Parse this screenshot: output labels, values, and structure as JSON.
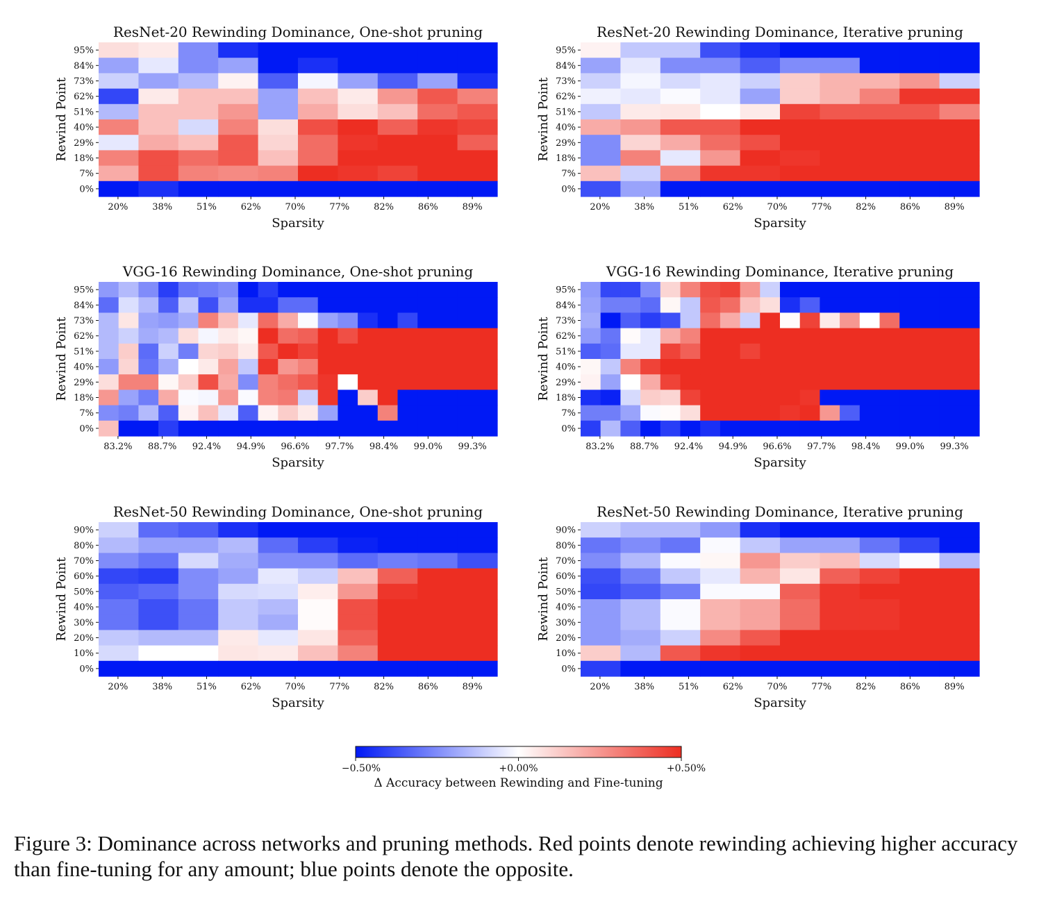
{
  "chart_data": [
    {
      "type": "heatmap",
      "title": "ResNet-20 Rewinding Dominance, One-shot pruning",
      "xlabel": "Sparsity",
      "ylabel": "Rewind Point",
      "x_ticks": [
        "20%",
        "38%",
        "51%",
        "62%",
        "70%",
        "77%",
        "82%",
        "86%",
        "89%"
      ],
      "y_ticks": [
        "95%",
        "84%",
        "73%",
        "62%",
        "51%",
        "40%",
        "29%",
        "18%",
        "7%",
        "0%"
      ],
      "values": [
        [
          0.08,
          0.05,
          -0.25,
          -0.45,
          -0.5,
          -0.5,
          -0.5,
          -0.5,
          -0.5,
          -0.5
        ],
        [
          -0.2,
          -0.05,
          -0.25,
          -0.2,
          -0.5,
          -0.45,
          -0.5,
          -0.5,
          -0.5,
          -0.5
        ],
        [
          -0.1,
          -0.2,
          -0.15,
          0.03,
          -0.35,
          -0.02,
          -0.2,
          -0.35,
          -0.2,
          -0.45
        ],
        [
          -0.4,
          0.05,
          0.15,
          0.15,
          -0.2,
          0.15,
          0.05,
          0.25,
          0.4,
          0.3
        ],
        [
          -0.15,
          0.15,
          0.15,
          0.25,
          -0.2,
          0.2,
          0.08,
          0.15,
          0.35,
          0.4
        ],
        [
          0.3,
          0.15,
          -0.08,
          0.3,
          0.08,
          0.42,
          0.5,
          0.38,
          0.48,
          0.45
        ],
        [
          -0.05,
          0.2,
          0.15,
          0.4,
          0.1,
          0.35,
          0.48,
          0.5,
          0.5,
          0.38
        ],
        [
          0.3,
          0.42,
          0.35,
          0.4,
          0.15,
          0.35,
          0.5,
          0.5,
          0.5,
          0.5
        ],
        [
          0.2,
          0.42,
          0.3,
          0.28,
          0.3,
          0.5,
          0.48,
          0.45,
          0.5,
          0.5
        ],
        [
          -0.5,
          -0.45,
          -0.5,
          -0.5,
          -0.5,
          -0.5,
          -0.5,
          -0.5,
          -0.5,
          -0.5
        ]
      ],
      "colorbar_range": [
        -0.5,
        0.5
      ]
    },
    {
      "type": "heatmap",
      "title": "ResNet-20 Rewinding Dominance, Iterative pruning",
      "xlabel": "Sparsity",
      "ylabel": "Rewind Point",
      "x_ticks": [
        "20%",
        "38%",
        "51%",
        "62%",
        "70%",
        "77%",
        "82%",
        "86%",
        "89%"
      ],
      "y_ticks": [
        "95%",
        "84%",
        "73%",
        "62%",
        "51%",
        "40%",
        "29%",
        "18%",
        "7%",
        "0%"
      ],
      "values": [
        [
          0.03,
          -0.12,
          -0.12,
          -0.38,
          -0.45,
          -0.5,
          -0.5,
          -0.5,
          -0.5,
          -0.5
        ],
        [
          -0.2,
          -0.05,
          -0.25,
          -0.25,
          -0.35,
          -0.25,
          -0.25,
          -0.5,
          -0.5,
          -0.5
        ],
        [
          -0.1,
          -0.02,
          -0.08,
          -0.05,
          -0.1,
          0.12,
          0.18,
          0.18,
          0.25,
          -0.1
        ],
        [
          -0.03,
          -0.05,
          -0.01,
          -0.05,
          -0.2,
          0.12,
          0.18,
          0.3,
          0.48,
          0.48
        ],
        [
          -0.12,
          0.05,
          0.06,
          0.0,
          0.05,
          0.45,
          0.4,
          0.4,
          0.4,
          0.3
        ],
        [
          0.2,
          0.25,
          0.4,
          0.4,
          0.5,
          0.5,
          0.5,
          0.5,
          0.5,
          0.5
        ],
        [
          -0.25,
          0.1,
          0.2,
          0.35,
          0.42,
          0.5,
          0.5,
          0.5,
          0.5,
          0.5
        ],
        [
          -0.25,
          0.3,
          -0.05,
          0.25,
          0.5,
          0.48,
          0.5,
          0.5,
          0.5,
          0.5
        ],
        [
          0.15,
          -0.1,
          0.3,
          0.48,
          0.48,
          0.5,
          0.5,
          0.5,
          0.5,
          0.5
        ],
        [
          -0.38,
          -0.2,
          -0.5,
          -0.5,
          -0.5,
          -0.5,
          -0.5,
          -0.5,
          -0.5,
          -0.5
        ]
      ],
      "colorbar_range": [
        -0.5,
        0.5
      ]
    },
    {
      "type": "heatmap",
      "title": "VGG-16 Rewinding Dominance, One-shot pruning",
      "xlabel": "Sparsity",
      "ylabel": "Rewind Point",
      "x_ticks": [
        "83.2%",
        "88.7%",
        "92.4%",
        "94.9%",
        "96.6%",
        "97.7%",
        "98.4%",
        "99.0%",
        "99.3%"
      ],
      "y_ticks": [
        "95%",
        "84%",
        "73%",
        "62%",
        "51%",
        "40%",
        "29%",
        "18%",
        "7%",
        "0%"
      ],
      "values": [
        [
          -0.22,
          -0.15,
          -0.25,
          -0.42,
          -0.3,
          -0.28,
          -0.25,
          -0.5,
          -0.42,
          -0.5,
          -0.5,
          -0.5,
          -0.5,
          -0.5,
          -0.5,
          -0.5,
          -0.5,
          -0.5,
          -0.5,
          -0.5
        ],
        [
          -0.32,
          -0.07,
          -0.15,
          -0.35,
          -0.12,
          -0.38,
          -0.2,
          -0.45,
          -0.45,
          -0.32,
          -0.32,
          -0.5,
          -0.5,
          -0.5,
          -0.5,
          -0.5,
          -0.5,
          -0.5,
          -0.5,
          -0.5
        ],
        [
          -0.15,
          0.06,
          -0.2,
          -0.22,
          -0.18,
          0.3,
          0.15,
          -0.05,
          0.35,
          0.2,
          -0.01,
          -0.2,
          -0.25,
          -0.45,
          -0.5,
          -0.4,
          -0.5,
          -0.5,
          -0.5,
          -0.5
        ],
        [
          -0.15,
          -0.1,
          -0.18,
          -0.15,
          0.08,
          -0.02,
          0.05,
          0.02,
          0.5,
          0.35,
          0.38,
          0.5,
          0.42,
          0.5,
          0.5,
          0.5,
          0.5,
          0.5,
          0.5,
          0.5
        ],
        [
          -0.15,
          0.12,
          -0.32,
          -0.1,
          -0.28,
          0.1,
          0.12,
          0.05,
          0.4,
          0.5,
          0.45,
          0.5,
          0.5,
          0.5,
          0.5,
          0.5,
          0.5,
          0.5,
          0.5,
          0.5
        ],
        [
          -0.22,
          0.1,
          -0.3,
          -0.18,
          0.0,
          0.05,
          0.22,
          -0.12,
          0.48,
          0.25,
          0.3,
          0.5,
          0.5,
          0.5,
          0.5,
          0.5,
          0.5,
          0.5,
          0.5,
          0.5
        ],
        [
          0.08,
          0.3,
          0.3,
          0.02,
          0.12,
          0.42,
          0.2,
          -0.25,
          0.3,
          0.35,
          0.4,
          0.48,
          0.0,
          0.5,
          0.5,
          0.5,
          0.5,
          0.5,
          0.5,
          0.5
        ],
        [
          0.25,
          -0.2,
          -0.28,
          0.2,
          -0.01,
          -0.02,
          0.25,
          -0.01,
          0.3,
          0.32,
          -0.1,
          0.48,
          -0.5,
          0.12,
          0.5,
          -0.5,
          -0.5,
          -0.5,
          -0.5,
          -0.5
        ],
        [
          -0.25,
          -0.28,
          -0.15,
          -0.35,
          0.03,
          0.15,
          -0.05,
          -0.35,
          0.03,
          0.12,
          0.05,
          -0.2,
          -0.5,
          -0.5,
          0.3,
          -0.5,
          -0.5,
          -0.5,
          -0.5,
          -0.5
        ],
        [
          0.15,
          -0.5,
          -0.5,
          -0.42,
          -0.5,
          -0.5,
          -0.5,
          -0.5,
          -0.5,
          -0.5,
          -0.5,
          -0.5,
          -0.5,
          -0.5,
          -0.5,
          -0.5,
          -0.5,
          -0.5,
          -0.5,
          -0.5
        ]
      ],
      "colorbar_range": [
        -0.5,
        0.5
      ]
    },
    {
      "type": "heatmap",
      "title": "VGG-16 Rewinding Dominance, Iterative pruning",
      "xlabel": "Sparsity",
      "ylabel": "Rewind Point",
      "x_ticks": [
        "83.2%",
        "88.7%",
        "92.4%",
        "94.9%",
        "96.6%",
        "97.7%",
        "98.4%",
        "99.0%",
        "99.3%"
      ],
      "y_ticks": [
        "95%",
        "84%",
        "73%",
        "62%",
        "51%",
        "40%",
        "29%",
        "18%",
        "7%",
        "0%"
      ],
      "values": [
        [
          -0.22,
          -0.4,
          -0.4,
          -0.25,
          0.1,
          0.3,
          0.42,
          0.45,
          0.25,
          -0.1,
          -0.5,
          -0.5,
          -0.5,
          -0.5,
          -0.5,
          -0.5,
          -0.5,
          -0.5,
          -0.5,
          -0.5
        ],
        [
          -0.2,
          -0.28,
          -0.28,
          -0.32,
          0.02,
          -0.12,
          0.4,
          0.35,
          0.15,
          0.08,
          -0.45,
          -0.35,
          -0.5,
          -0.5,
          -0.5,
          -0.5,
          -0.5,
          -0.5,
          -0.5,
          -0.5
        ],
        [
          -0.18,
          -0.5,
          -0.35,
          -0.42,
          -0.38,
          -0.12,
          0.35,
          0.2,
          -0.1,
          0.5,
          0.01,
          0.45,
          0.05,
          0.25,
          0.0,
          0.35,
          -0.5,
          -0.5,
          -0.5,
          -0.5
        ],
        [
          -0.22,
          -0.3,
          0.01,
          -0.05,
          0.2,
          0.3,
          0.5,
          0.5,
          0.5,
          0.5,
          0.5,
          0.5,
          0.5,
          0.5,
          0.5,
          0.5,
          0.5,
          0.5,
          0.5,
          0.5
        ],
        [
          -0.35,
          -0.32,
          -0.05,
          -0.05,
          0.45,
          0.38,
          0.5,
          0.5,
          0.45,
          0.5,
          0.5,
          0.5,
          0.5,
          0.5,
          0.5,
          0.5,
          0.5,
          0.5,
          0.5,
          0.5
        ],
        [
          0.02,
          -0.12,
          0.3,
          0.45,
          0.5,
          0.5,
          0.5,
          0.5,
          0.5,
          0.5,
          0.5,
          0.5,
          0.5,
          0.5,
          0.5,
          0.5,
          0.5,
          0.5,
          0.5,
          0.5
        ],
        [
          0.03,
          -0.2,
          0.0,
          0.2,
          0.45,
          0.5,
          0.5,
          0.5,
          0.5,
          0.5,
          0.5,
          0.5,
          0.5,
          0.5,
          0.5,
          0.5,
          0.5,
          0.5,
          0.5,
          0.5
        ],
        [
          -0.45,
          -0.48,
          -0.08,
          0.12,
          0.1,
          0.45,
          0.5,
          0.5,
          0.5,
          0.5,
          0.5,
          0.48,
          -0.5,
          -0.5,
          -0.5,
          -0.5,
          -0.5,
          -0.5,
          -0.5,
          -0.5
        ],
        [
          -0.28,
          -0.28,
          -0.2,
          -0.01,
          0.01,
          0.08,
          0.5,
          0.5,
          0.5,
          0.5,
          0.48,
          0.5,
          0.25,
          -0.35,
          -0.5,
          -0.5,
          -0.5,
          -0.5,
          -0.5,
          -0.5
        ],
        [
          -0.42,
          -0.15,
          -0.35,
          -0.5,
          -0.42,
          -0.5,
          -0.45,
          -0.5,
          -0.5,
          -0.5,
          -0.5,
          -0.5,
          -0.5,
          -0.5,
          -0.5,
          -0.5,
          -0.5,
          -0.5,
          -0.5,
          -0.5
        ]
      ],
      "colorbar_range": [
        -0.5,
        0.5
      ]
    },
    {
      "type": "heatmap",
      "title": "ResNet-50 Rewinding Dominance, One-shot pruning",
      "xlabel": "Sparsity",
      "ylabel": "Rewind Point",
      "x_ticks": [
        "20%",
        "38%",
        "51%",
        "62%",
        "70%",
        "77%",
        "82%",
        "86%",
        "89%"
      ],
      "y_ticks": [
        "90%",
        "80%",
        "70%",
        "60%",
        "50%",
        "40%",
        "30%",
        "20%",
        "10%",
        "0%"
      ],
      "values": [
        [
          -0.1,
          -0.32,
          -0.35,
          -0.45,
          -0.5,
          -0.5,
          -0.5,
          -0.5,
          -0.5,
          -0.5
        ],
        [
          -0.15,
          -0.2,
          -0.2,
          -0.15,
          -0.32,
          -0.42,
          -0.48,
          -0.5,
          -0.5,
          -0.5
        ],
        [
          -0.25,
          -0.3,
          -0.08,
          -0.18,
          -0.25,
          -0.25,
          -0.32,
          -0.28,
          -0.3,
          -0.38
        ],
        [
          -0.4,
          -0.42,
          -0.25,
          -0.2,
          -0.05,
          -0.1,
          0.15,
          0.38,
          0.5,
          0.5
        ],
        [
          -0.35,
          -0.32,
          -0.25,
          -0.08,
          -0.07,
          0.04,
          0.25,
          0.48,
          0.5,
          0.5
        ],
        [
          -0.3,
          -0.38,
          -0.3,
          -0.12,
          -0.15,
          0.01,
          0.42,
          0.5,
          0.5,
          0.5
        ],
        [
          -0.3,
          -0.38,
          -0.3,
          -0.12,
          -0.18,
          0.01,
          0.42,
          0.5,
          0.5,
          0.5
        ],
        [
          -0.12,
          -0.15,
          -0.15,
          0.05,
          -0.05,
          0.06,
          0.38,
          0.5,
          0.5,
          0.5
        ],
        [
          -0.08,
          0.0,
          0.0,
          0.06,
          0.05,
          0.15,
          0.3,
          0.5,
          0.5,
          0.5
        ],
        [
          -0.5,
          -0.5,
          -0.5,
          -0.5,
          -0.5,
          -0.5,
          -0.5,
          -0.5,
          -0.5,
          -0.5
        ]
      ],
      "colorbar_range": [
        -0.5,
        0.5
      ]
    },
    {
      "type": "heatmap",
      "title": "ResNet-50 Rewinding Dominance, Iterative pruning",
      "xlabel": "Sparsity",
      "ylabel": "Rewind Point",
      "x_ticks": [
        "20%",
        "38%",
        "51%",
        "62%",
        "70%",
        "77%",
        "82%",
        "86%",
        "89%"
      ],
      "y_ticks": [
        "90%",
        "80%",
        "70%",
        "60%",
        "50%",
        "40%",
        "30%",
        "20%",
        "10%",
        "0%"
      ],
      "values": [
        [
          -0.1,
          -0.15,
          -0.15,
          -0.22,
          -0.45,
          -0.5,
          -0.5,
          -0.5,
          -0.5,
          -0.5
        ],
        [
          -0.3,
          -0.25,
          -0.3,
          -0.01,
          -0.12,
          -0.2,
          -0.2,
          -0.3,
          -0.4,
          -0.5
        ],
        [
          -0.25,
          -0.15,
          -0.01,
          0.02,
          0.25,
          0.12,
          0.15,
          -0.08,
          -0.01,
          -0.15
        ],
        [
          -0.38,
          -0.28,
          -0.12,
          -0.05,
          0.18,
          0.06,
          0.38,
          0.45,
          0.5,
          0.5
        ],
        [
          -0.4,
          -0.35,
          -0.28,
          -0.01,
          -0.01,
          0.38,
          0.48,
          0.5,
          0.5,
          0.5
        ],
        [
          -0.22,
          -0.15,
          -0.01,
          0.18,
          0.22,
          0.35,
          0.48,
          0.48,
          0.5,
          0.5
        ],
        [
          -0.22,
          -0.15,
          -0.01,
          0.18,
          0.22,
          0.35,
          0.48,
          0.48,
          0.5,
          0.5
        ],
        [
          -0.22,
          -0.18,
          -0.1,
          0.28,
          0.4,
          0.5,
          0.5,
          0.5,
          0.5,
          0.5
        ],
        [
          0.12,
          -0.15,
          0.4,
          0.48,
          0.5,
          0.5,
          0.5,
          0.5,
          0.5,
          0.5
        ],
        [
          -0.42,
          -0.5,
          -0.5,
          -0.5,
          -0.5,
          -0.5,
          -0.5,
          -0.5,
          -0.5,
          -0.5
        ]
      ],
      "colorbar_range": [
        -0.5,
        0.5
      ]
    }
  ],
  "colorbar": {
    "ticks": [
      "−0.50%",
      "+0.00%",
      "+0.50%"
    ],
    "label": "Δ Accuracy between Rewinding and Fine-tuning",
    "low_color": "#0019f5",
    "mid_color": "#ffffff",
    "high_color": "#ed2e22"
  },
  "caption": "Figure 3: Dominance across networks and pruning methods. Red points denote rewinding achieving higher accuracy than fine-tuning for any amount; blue points denote the opposite."
}
